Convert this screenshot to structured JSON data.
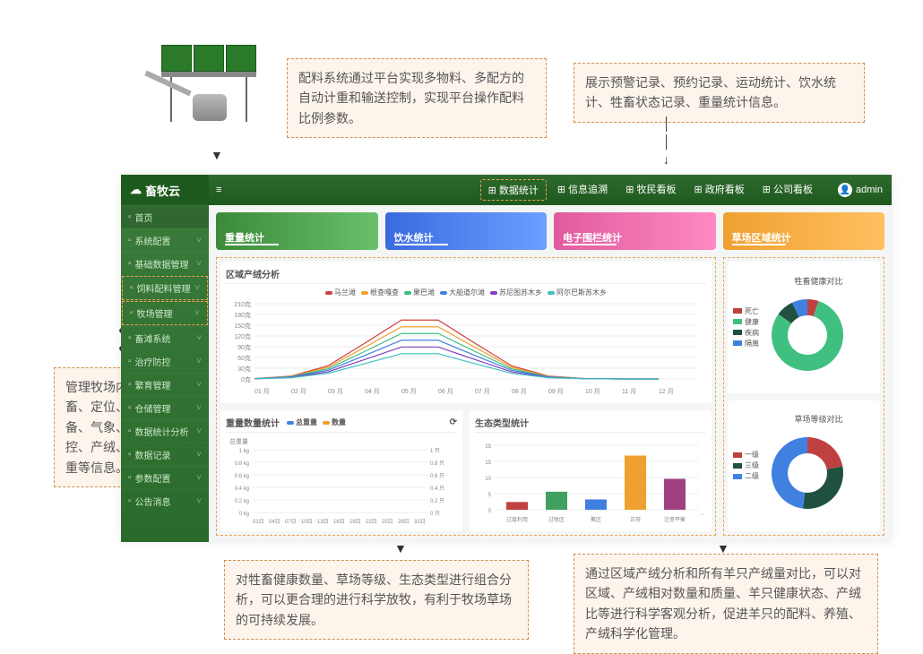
{
  "callouts": {
    "top_left": "配料系统通过平台实现多物料、多配方的自动计重和输送控制，实现平台操作配料比例参数。",
    "top_right": "展示预警记录、预约记录、运动统计、饮水统计、牲畜状态记录、重量统计信息。",
    "left": "管理牧场内牲畜、定位、设备、气象、监控、产绒、称重等信息。",
    "bottom_left": "对牲畜健康数量、草场等级、生态类型进行组合分析，可以更合理的进行科学放牧，有利于牧场草场的可持续发展。",
    "bottom_right": "通过区域产绒分析和所有羊只产绒量对比，可以对区域、产绒相对数量和质量、羊只健康状态、产绒比等进行科学客观分析，促进羊只的配料、养殖、产绒科学化管理。"
  },
  "brand": "畜牧云",
  "topnav": [
    "数据统计",
    "信息追溯",
    "牧民看板",
    "政府看板",
    "公司看板"
  ],
  "topnav_active": 0,
  "user": "admin",
  "sidebar": [
    {
      "label": "首页",
      "home": true
    },
    {
      "label": "系统配置"
    },
    {
      "label": "基础数据管理"
    },
    {
      "label": "饲料配料管理",
      "hi": true
    },
    {
      "label": "牧场管理",
      "hi": true
    },
    {
      "label": "畜滩系统"
    },
    {
      "label": "治疗防控"
    },
    {
      "label": "繁育管理"
    },
    {
      "label": "仓储管理"
    },
    {
      "label": "数据统计分析"
    },
    {
      "label": "数据记录"
    },
    {
      "label": "参数配置"
    },
    {
      "label": "公告消息"
    }
  ],
  "stat_cards": [
    {
      "label": "重量统计",
      "g": [
        "#3a8a3a",
        "#6ac06a"
      ]
    },
    {
      "label": "饮水统计",
      "g": [
        "#3a6ae0",
        "#6aa0ff"
      ]
    },
    {
      "label": "电子围栏统计",
      "g": [
        "#e05aa0",
        "#ff8ac0"
      ]
    },
    {
      "label": "草场区域统计",
      "g": [
        "#f0a030",
        "#ffc060"
      ]
    }
  ],
  "line_chart": {
    "title": "区域产绒分析",
    "series": [
      {
        "name": "马兰滩",
        "color": "#d04040"
      },
      {
        "name": "根查嘎查",
        "color": "#f0a030"
      },
      {
        "name": "果巴滩",
        "color": "#40c080"
      },
      {
        "name": "大船道尔滩",
        "color": "#4080e0"
      },
      {
        "name": "苏尼图苏木乡",
        "color": "#8040c0"
      },
      {
        "name": "阿尔巴斯苏木乡",
        "color": "#40c0c0"
      }
    ],
    "yticks": [
      "210克",
      "180克",
      "150克",
      "120克",
      "90克",
      "60克",
      "30克",
      "0克"
    ],
    "xticks": [
      "01 月",
      "02 月",
      "03 月",
      "04 月",
      "05 月",
      "06 月",
      "07 月",
      "08 月",
      "09 月",
      "10 月",
      "11 月",
      "12 月"
    ]
  },
  "dual_chart": {
    "title": "重量数量统计",
    "legend": [
      {
        "name": "总重量",
        "color": "#4080e0"
      },
      {
        "name": "数量",
        "color": "#f0a030"
      }
    ],
    "yl": [
      "1 kg",
      "0.8 kg",
      "0.6 kg",
      "0.4 kg",
      "0.2 kg",
      "0 kg"
    ],
    "yr": [
      "1 只",
      "0.8 只",
      "0.6 只",
      "0.4 只",
      "0.2 只",
      "0 只"
    ],
    "x": [
      "01日",
      "04日",
      "07日",
      "10日",
      "13日",
      "16日",
      "19日",
      "22日",
      "25日",
      "28日",
      "31日"
    ]
  },
  "bar_chart": {
    "title": "生态类型统计",
    "y": [
      "25",
      "15",
      "10",
      "5",
      "0"
    ],
    "bars": [
      {
        "label": "过度利用",
        "v": 3,
        "color": "#c04040"
      },
      {
        "label": "过牧区",
        "v": 7,
        "color": "#40a060"
      },
      {
        "label": "聚区",
        "v": 4,
        "color": "#4080e0"
      },
      {
        "label": "正常",
        "v": 21,
        "color": "#f0a030"
      },
      {
        "label": "注意平衡",
        "v": 12,
        "color": "#a04080"
      }
    ]
  },
  "donut1": {
    "title": "牲畜健康对比",
    "legend": [
      {
        "name": "死亡",
        "color": "#c04040"
      },
      {
        "name": "健康",
        "color": "#40c080"
      },
      {
        "name": "疾病",
        "color": "#205040"
      },
      {
        "name": "隔离",
        "color": "#4080e0"
      }
    ]
  },
  "donut2": {
    "title": "草场等级对比",
    "legend": [
      {
        "name": "一级",
        "color": "#c04040"
      },
      {
        "name": "三级",
        "color": "#205040"
      },
      {
        "name": "二级",
        "color": "#4080e0"
      }
    ]
  }
}
